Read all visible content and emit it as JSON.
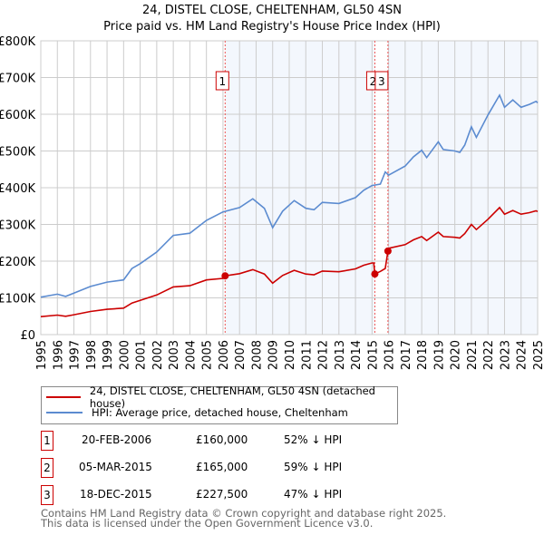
{
  "title": "24, DISTEL CLOSE, CHELTENHAM, GL50 4SN",
  "subtitle": "Price paid vs. HM Land Registry's House Price Index (HPI)",
  "chart_data": {
    "type": "line",
    "title": "24, DISTEL CLOSE, CHELTENHAM, GL50 4SN — Price paid vs. HM Land Registry's House Price Index (HPI)",
    "xlim": [
      1995,
      2025
    ],
    "ylim": [
      0,
      800000
    ],
    "y_ticks": [
      0,
      100000,
      200000,
      300000,
      400000,
      500000,
      600000,
      700000,
      800000
    ],
    "y_tick_labels": [
      "£0",
      "£100K",
      "£200K",
      "£300K",
      "£400K",
      "£500K",
      "£600K",
      "£700K",
      "£800K"
    ],
    "x_ticks": [
      "1995",
      "1996",
      "1997",
      "1998",
      "1999",
      "2000",
      "2001",
      "2002",
      "2003",
      "2004",
      "2005",
      "2006",
      "2007",
      "2008",
      "2009",
      "2010",
      "2011",
      "2012",
      "2013",
      "2014",
      "2015",
      "2016",
      "2017",
      "2018",
      "2019",
      "2020",
      "2021",
      "2022",
      "2023",
      "2024",
      "2025"
    ],
    "grid": true,
    "series": [
      {
        "name": "HPI: Average price, detached house, Cheltenham",
        "color": "#5b8bd0",
        "x": [
          1995,
          1996,
          1996.5,
          1997,
          1998,
          1999,
          2000,
          2000.5,
          2001,
          2002,
          2003,
          2004,
          2005,
          2006,
          2007,
          2007.8,
          2008.5,
          2009,
          2009.6,
          2010.3,
          2011,
          2011.5,
          2012,
          2013,
          2014,
          2014.5,
          2015,
          2015.5,
          2015.8,
          2016,
          2017,
          2017.5,
          2018,
          2018.3,
          2019,
          2019.3,
          2020,
          2020.3,
          2020.6,
          2021,
          2021.3,
          2022,
          2022.7,
          2023,
          2023.5,
          2024,
          2024.5,
          2024.9,
          2025
        ],
        "y": [
          102000,
          110000,
          104000,
          113000,
          131000,
          143000,
          149000,
          180000,
          193000,
          225000,
          270000,
          276000,
          311000,
          334000,
          346000,
          370000,
          344000,
          291000,
          336000,
          365000,
          344000,
          340000,
          360000,
          357000,
          373000,
          393000,
          406000,
          410000,
          443000,
          434000,
          459000,
          484000,
          502000,
          482000,
          525000,
          504000,
          500000,
          496000,
          516000,
          566000,
          537000,
          598000,
          652000,
          619000,
          639000,
          619000,
          627000,
          635000,
          631000
        ]
      },
      {
        "name": "24, DISTEL CLOSE, CHELTENHAM, GL50 4SN (detached house)",
        "color": "#cc0000",
        "x": [
          1995,
          1996,
          1996.5,
          1997,
          1998,
          1999,
          2000,
          2000.5,
          2001,
          2002,
          2003,
          2004,
          2005,
          2006,
          2006.13,
          2007,
          2007.8,
          2008.5,
          2009,
          2009.6,
          2010.3,
          2011,
          2011.5,
          2012,
          2013,
          2014,
          2014.5,
          2015,
          2015.1,
          2015.17,
          2015.5,
          2015.8,
          2015.96,
          2016,
          2017,
          2017.5,
          2018,
          2018.3,
          2019,
          2019.3,
          2020,
          2020.3,
          2020.6,
          2021,
          2021.3,
          2022,
          2022.7,
          2023,
          2023.5,
          2024,
          2024.5,
          2024.9,
          2025
        ],
        "y": [
          49000,
          53000,
          50000,
          54000,
          63000,
          69000,
          72000,
          86000,
          93000,
          108000,
          130000,
          133000,
          149000,
          153000,
          160000,
          166000,
          177000,
          165000,
          140000,
          161000,
          175000,
          165000,
          163000,
          173000,
          171000,
          179000,
          189000,
          195000,
          195000,
          165000,
          172000,
          180000,
          227500,
          235000,
          245000,
          258000,
          267000,
          256000,
          279000,
          267000,
          265000,
          263000,
          275000,
          300000,
          286000,
          314000,
          346000,
          328000,
          338000,
          328000,
          332000,
          337000,
          335000
        ]
      }
    ],
    "sales": [
      {
        "label": "1",
        "date": "20-FEB-2006",
        "x": 2006.13,
        "price": 160000,
        "price_label": "£160,000",
        "hpi_diff": "52% ↓ HPI"
      },
      {
        "label": "2",
        "date": "05-MAR-2015",
        "x": 2015.17,
        "price": 165000,
        "price_label": "£165,000",
        "hpi_diff": "59% ↓ HPI"
      },
      {
        "label": "3",
        "date": "18-DEC-2015",
        "x": 2015.96,
        "price": 227500,
        "price_label": "£227,500",
        "hpi_diff": "47% ↓ HPI"
      }
    ],
    "legend_position": "below"
  },
  "legend": {
    "property": "24, DISTEL CLOSE, CHELTENHAM, GL50 4SN (detached house)",
    "hpi": "HPI: Average price, detached house, Cheltenham"
  },
  "footer": {
    "line1": "Contains HM Land Registry data © Crown copyright and database right 2025.",
    "line2": "This data is licensed under the Open Government Licence v3.0."
  }
}
